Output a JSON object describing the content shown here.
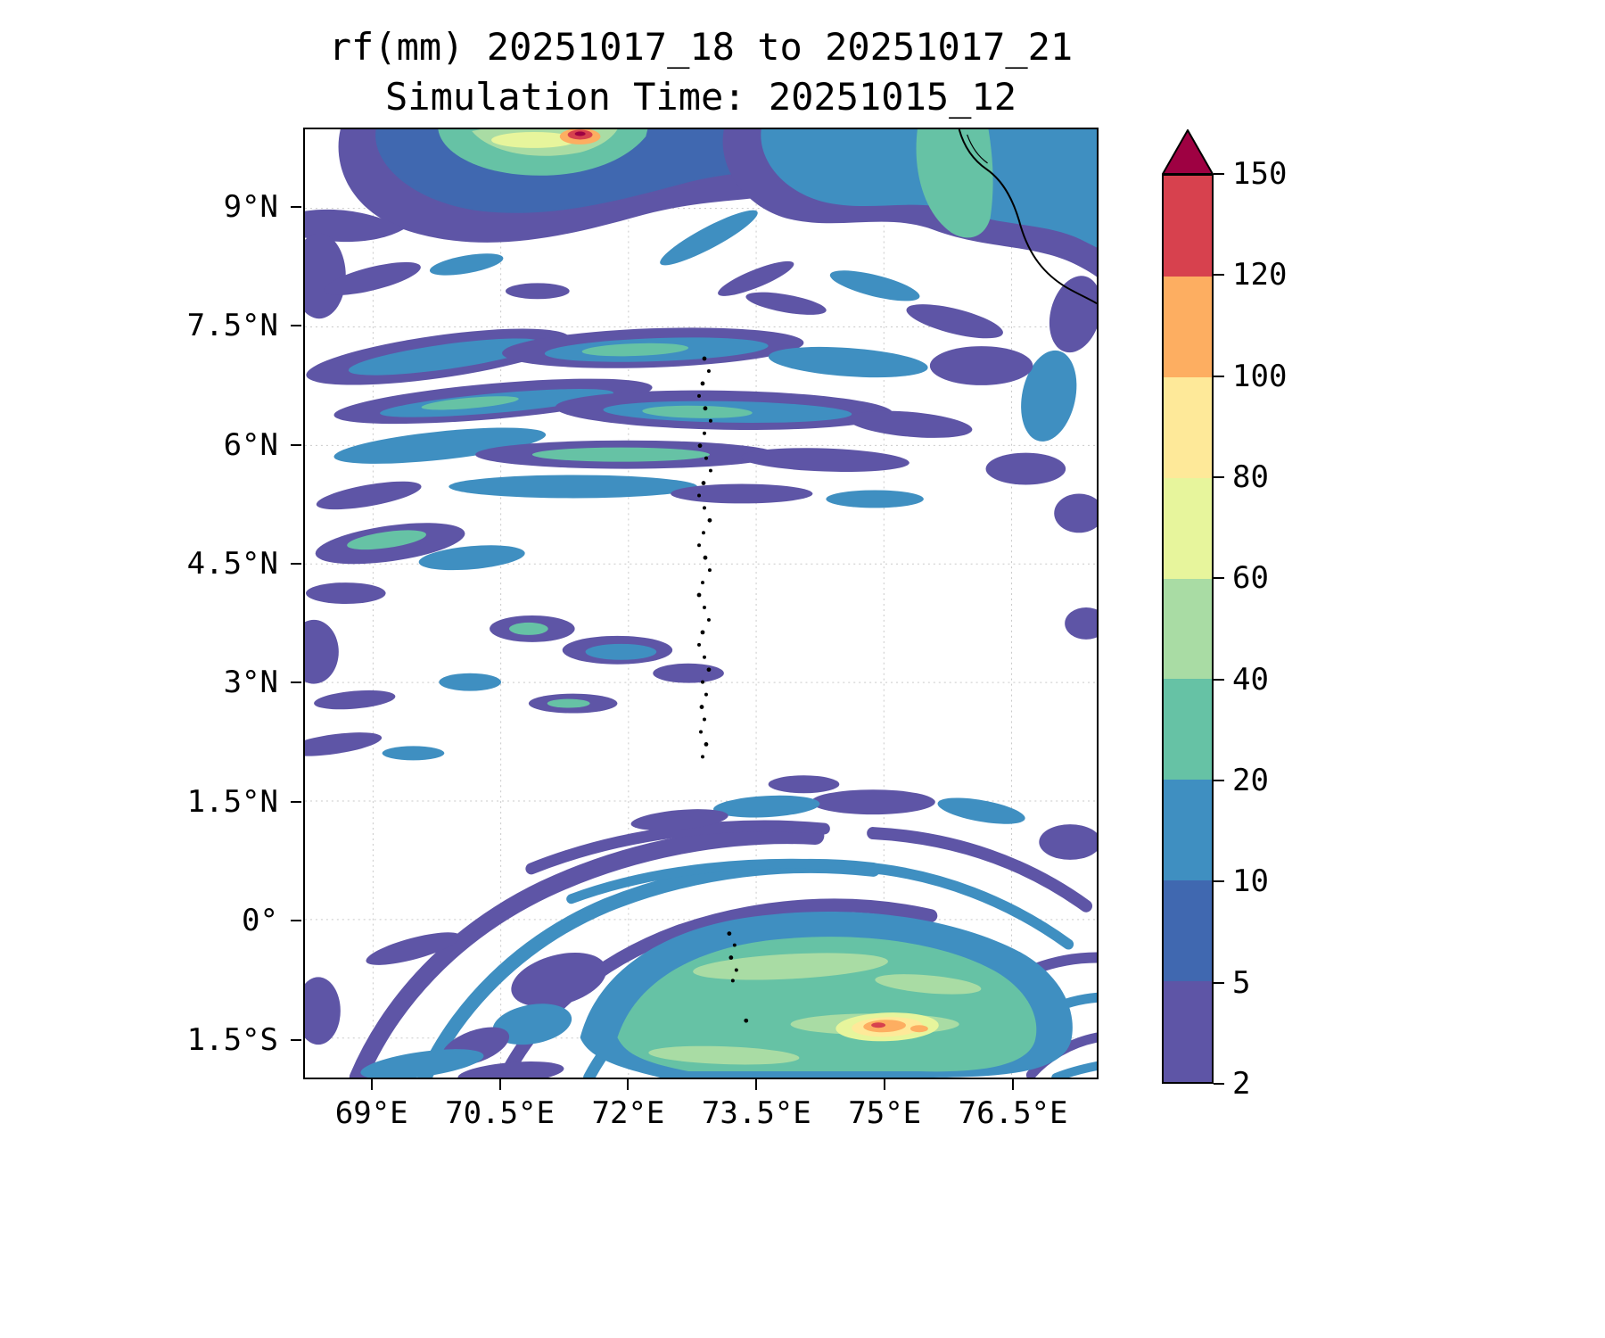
{
  "chart_data": {
    "type": "heatmap",
    "variable": "rf",
    "units": "mm",
    "title": "rf(mm) 20251017_18 to 20251017_21",
    "subtitle": "Simulation Time: 20251015_12",
    "levels": [
      2,
      5,
      10,
      20,
      40,
      60,
      80,
      100,
      120,
      150
    ],
    "colors": [
      "#5e55a6",
      "#4068b0",
      "#3f8fc1",
      "#66c2a5",
      "#a9dca4",
      "#e7f59c",
      "#fee999",
      "#fdae61",
      "#d7414e"
    ],
    "extend_color": "#9e0142",
    "colorbar_extend": "max",
    "legend_position": "right-colorbar",
    "grid": true,
    "extent": {
      "lon_min": 68.2,
      "lon_max": 77.5,
      "lat_min": -2.0,
      "lat_max": 10.0
    },
    "x_ticks": [
      69,
      70.5,
      72,
      73.5,
      75,
      76.5
    ],
    "x_tick_labels": [
      "69°E",
      "70.5°E",
      "72°E",
      "73.5°E",
      "75°E",
      "76.5°E"
    ],
    "y_ticks": [
      9,
      7.5,
      6,
      4.5,
      3,
      1.5,
      0,
      -1.5
    ],
    "y_tick_labels": [
      "9°N",
      "7.5°N",
      "6°N",
      "4.5°N",
      "3°N",
      "1.5°N",
      "0°",
      "1.5°S"
    ],
    "features": [
      {
        "region": "Northern rainband 8.5-10N, 69-75E",
        "max_mm": 150,
        "note": "intense cell near 71.5E at top edge exceeding 150 mm (dark red core)"
      },
      {
        "region": "Streaky east-west bands 6-8N, 68.5-76E",
        "max_mm": 40,
        "note": "mostly 2-20 mm with teal 20-40 mm cores"
      },
      {
        "region": "Scattered cells 3-5.5N west of 72E",
        "max_mm": 25
      },
      {
        "region": "Southern spiral rainbands 2S-1.5N",
        "max_mm": 60,
        "note": "curved concentric bands of 2-20 mm"
      },
      {
        "region": "Southern core near 75E, 1.4S",
        "max_mm": 120,
        "note": "broad 20-60 mm area with orange/yellow hotspot 80-120 mm"
      },
      {
        "geography": "southwest India coastline in top-right corner; Maldives atoll chain plotted as dots near 73E from 7N to 0.5N"
      }
    ]
  }
}
